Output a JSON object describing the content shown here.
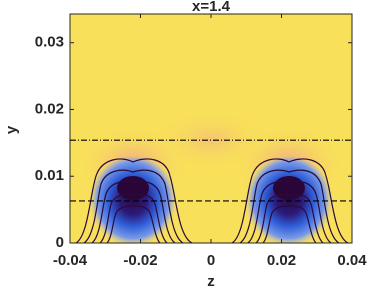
{
  "chart_data": {
    "type": "heatmap",
    "title": "x=1.4",
    "x_label": "z",
    "y_label": "y",
    "xlim": [
      -0.04,
      0.04
    ],
    "xticks": [
      -0.04,
      -0.02,
      0,
      0.02,
      0.04
    ],
    "ylim": [
      0,
      0.0343
    ],
    "yticks": [
      0,
      0.01,
      0.02,
      0.03
    ],
    "hlines": [
      {
        "y": 0.0154,
        "style": "dashdot"
      },
      {
        "y": 0.0063,
        "style": "dashed"
      }
    ]
  }
}
